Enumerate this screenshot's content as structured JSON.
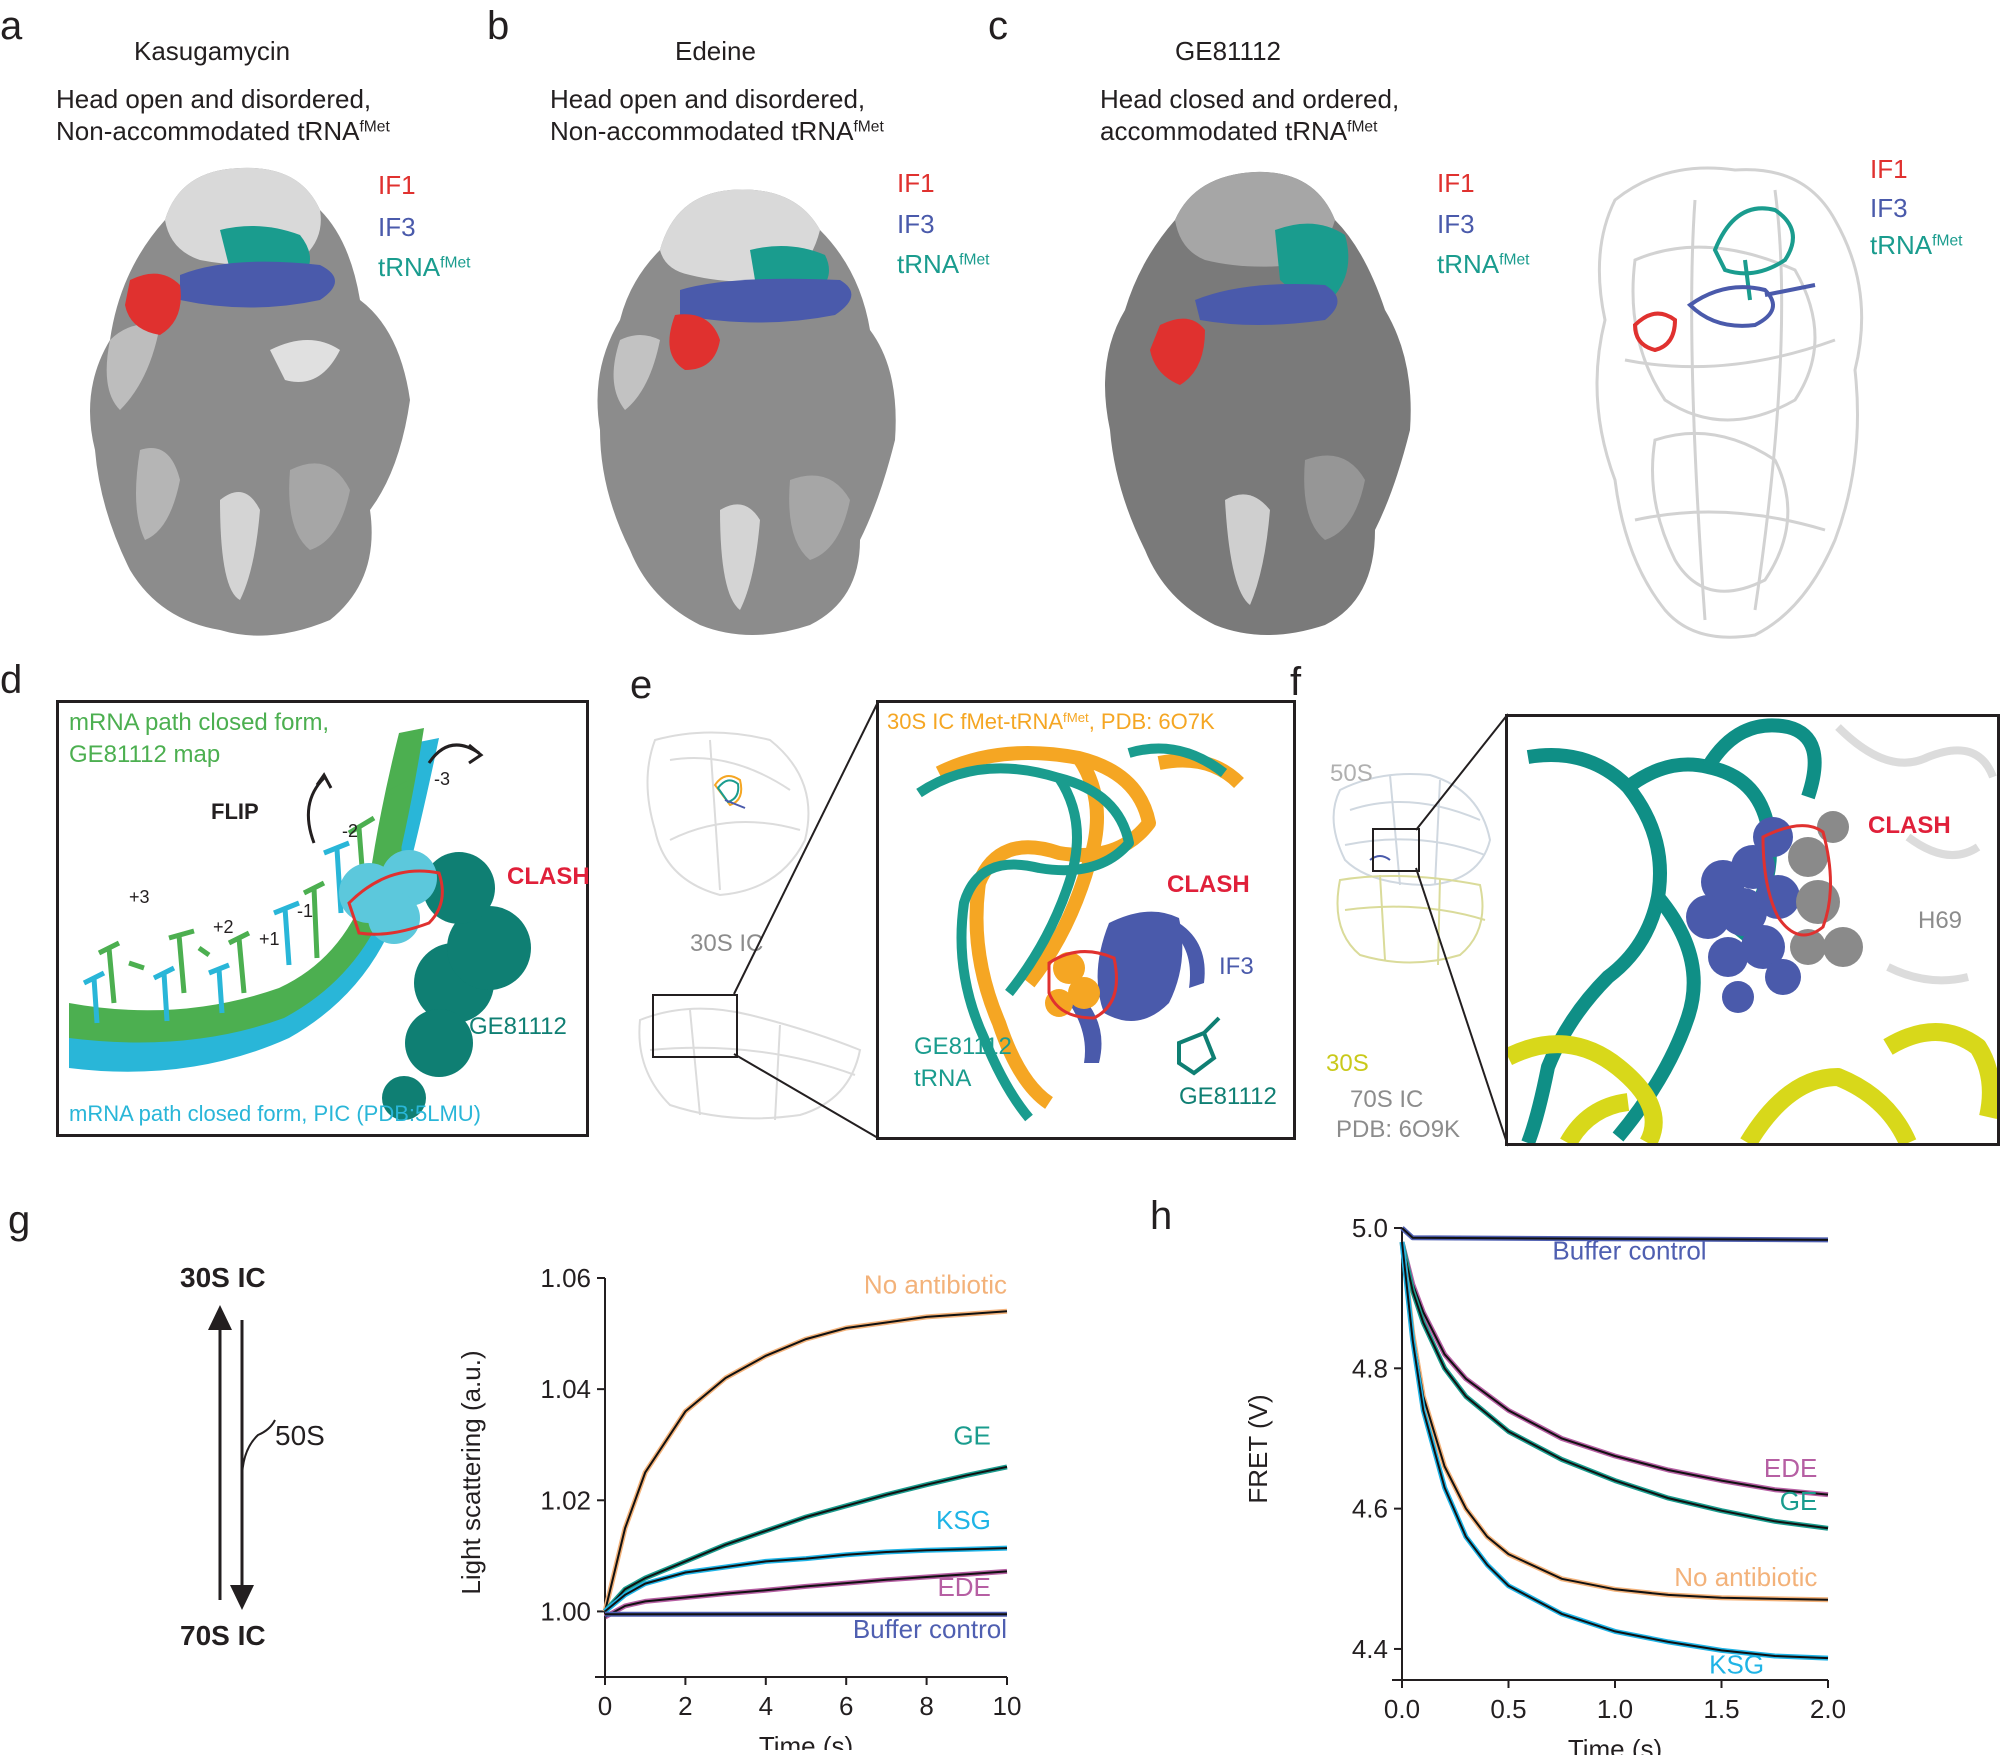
{
  "colors": {
    "if1": "#e0312f",
    "if3": "#4a5aab",
    "trna": "#1a9c8e",
    "ge_green": "#4caf50",
    "pic_cyan": "#29b6d8",
    "orange": "#f5a623",
    "clash": "#e0203a",
    "yellow": "#d8d81a",
    "ede": "#b65fa3",
    "ksg": "#1fb4e6",
    "buffer": "#4f5fb1",
    "noab": "#f3b27a"
  },
  "panel_a": {
    "letter": "a",
    "title": "Kasugamycin",
    "line1": "Head open and disordered,",
    "line2": "Non-accommodated tRNA",
    "sup": "fMet",
    "if1": "IF1",
    "if3": "IF3",
    "trna": "tRNA",
    "trna_sup": "fMet"
  },
  "panel_b": {
    "letter": "b",
    "title": "Edeine",
    "line1": "Head open and disordered,",
    "line2": "Non-accommodated tRNA",
    "sup": "fMet",
    "if1": "IF1",
    "if3": "IF3",
    "trna": "tRNA",
    "trna_sup": "fMet"
  },
  "panel_c": {
    "letter": "c",
    "title": "GE81112",
    "line1": "Head closed and ordered,",
    "line2": "accommodated tRNA",
    "sup": "fMet",
    "if1": "IF1",
    "if3": "IF3",
    "trna": "tRNA",
    "trna_sup": "fMet",
    "r_if1": "IF1",
    "r_if3": "IF3",
    "r_trna": "tRNA",
    "r_trna_sup": "fMet"
  },
  "panel_d": {
    "letter": "d",
    "green1": "mRNA path closed form,",
    "green2": "GE81112 map",
    "flip": "FLIP",
    "clash": "CLASH",
    "n_3": "-3",
    "n_2": "-2",
    "n_1": "-1",
    "p_1": "+1",
    "p_2": "+2",
    "p_3": "+3",
    "ge": "GE81112",
    "cyan": "mRNA path closed form, PIC (PDB:5LMU)"
  },
  "panel_e": {
    "letter": "e",
    "ic30": "30S IC",
    "header": "30S IC fMet-tRNA",
    "header_sup": "fMet",
    "header_tail": ", PDB: 6O7K",
    "clash": "CLASH",
    "if3": "IF3",
    "ge_trna1": "GE81112",
    "ge_trna2": "tRNA",
    "ge": "GE81112"
  },
  "panel_f": {
    "letter": "f",
    "s50": "50S",
    "s30": "30S",
    "ic70": "70S IC",
    "pdb": "PDB:  6O9K",
    "clash": "CLASH",
    "h69": "H69"
  },
  "panel_g": {
    "letter": "g",
    "top": "30S IC",
    "bottom": "70S IC",
    "s50": "50S",
    "chart_data": {
      "type": "line",
      "xlabel": "Time (s)",
      "ylabel": "Light scattering  (a.u.)",
      "xlim": [
        0,
        10
      ],
      "ylim": [
        0.99,
        1.06
      ],
      "xticks": [
        "0",
        "2",
        "4",
        "6",
        "8",
        "10"
      ],
      "yticks": [
        "1.00",
        "1.02",
        "1.04",
        "1.06"
      ],
      "series": [
        {
          "name": "No antibiotic",
          "color": "#f3b27a",
          "points": [
            [
              0,
              1.0
            ],
            [
              0.5,
              1.015
            ],
            [
              1,
              1.025
            ],
            [
              2,
              1.036
            ],
            [
              3,
              1.042
            ],
            [
              4,
              1.046
            ],
            [
              5,
              1.049
            ],
            [
              6,
              1.051
            ],
            [
              7,
              1.052
            ],
            [
              8,
              1.053
            ],
            [
              9,
              1.0535
            ],
            [
              10,
              1.054
            ]
          ]
        },
        {
          "name": "GE",
          "color": "#1a9c8e",
          "points": [
            [
              0,
              1.0
            ],
            [
              0.5,
              1.004
            ],
            [
              1,
              1.006
            ],
            [
              2,
              1.009
            ],
            [
              3,
              1.012
            ],
            [
              4,
              1.0145
            ],
            [
              5,
              1.017
            ],
            [
              6,
              1.019
            ],
            [
              7,
              1.021
            ],
            [
              8,
              1.0228
            ],
            [
              9,
              1.0245
            ],
            [
              10,
              1.026
            ]
          ]
        },
        {
          "name": "KSG",
          "color": "#1fb4e6",
          "points": [
            [
              0,
              1.0
            ],
            [
              0.5,
              1.003
            ],
            [
              1,
              1.005
            ],
            [
              2,
              1.007
            ],
            [
              3,
              1.008
            ],
            [
              4,
              1.009
            ],
            [
              5,
              1.0095
            ],
            [
              6,
              1.0102
            ],
            [
              7,
              1.0107
            ],
            [
              8,
              1.011
            ],
            [
              9,
              1.0112
            ],
            [
              10,
              1.0114
            ]
          ]
        },
        {
          "name": "EDE",
          "color": "#b65fa3",
          "points": [
            [
              0,
              0.999
            ],
            [
              0.5,
              1.001
            ],
            [
              1,
              1.0018
            ],
            [
              2,
              1.0025
            ],
            [
              3,
              1.0032
            ],
            [
              4,
              1.0038
            ],
            [
              5,
              1.0045
            ],
            [
              6,
              1.0051
            ],
            [
              7,
              1.0057
            ],
            [
              8,
              1.0062
            ],
            [
              9,
              1.0067
            ],
            [
              10,
              1.0072
            ]
          ]
        },
        {
          "name": "Buffer control",
          "color": "#4f5fb1",
          "points": [
            [
              0,
              0.9995
            ],
            [
              10,
              0.9995
            ]
          ]
        }
      ]
    }
  },
  "panel_h": {
    "letter": "h",
    "chart_data": {
      "type": "line",
      "xlabel": "Time (s)",
      "ylabel": "FRET (V)",
      "xlim": [
        0,
        2
      ],
      "ylim": [
        4.37,
        5.0
      ],
      "xticks": [
        "0.0",
        "0.5",
        "1.0",
        "1.5",
        "2.0"
      ],
      "yticks": [
        "4.4",
        "4.6",
        "4.8",
        "5.0"
      ],
      "series": [
        {
          "name": "Buffer control",
          "color": "#4f5fb1",
          "points": [
            [
              0,
              5.0
            ],
            [
              0.05,
              4.986
            ],
            [
              2,
              4.983
            ]
          ]
        },
        {
          "name": "EDE",
          "color": "#b65fa3",
          "points": [
            [
              0,
              4.98
            ],
            [
              0.05,
              4.92
            ],
            [
              0.1,
              4.88
            ],
            [
              0.2,
              4.82
            ],
            [
              0.3,
              4.785
            ],
            [
              0.5,
              4.74
            ],
            [
              0.75,
              4.7
            ],
            [
              1.0,
              4.675
            ],
            [
              1.25,
              4.655
            ],
            [
              1.5,
              4.64
            ],
            [
              1.75,
              4.627
            ],
            [
              2.0,
              4.62
            ]
          ]
        },
        {
          "name": "GE",
          "color": "#1a9c8e",
          "points": [
            [
              0,
              4.98
            ],
            [
              0.05,
              4.91
            ],
            [
              0.1,
              4.865
            ],
            [
              0.2,
              4.8
            ],
            [
              0.3,
              4.76
            ],
            [
              0.5,
              4.71
            ],
            [
              0.75,
              4.67
            ],
            [
              1.0,
              4.64
            ],
            [
              1.25,
              4.615
            ],
            [
              1.5,
              4.597
            ],
            [
              1.75,
              4.582
            ],
            [
              2.0,
              4.572
            ]
          ]
        },
        {
          "name": "No antibiotic",
          "color": "#f3b27a",
          "points": [
            [
              0,
              4.98
            ],
            [
              0.05,
              4.85
            ],
            [
              0.1,
              4.76
            ],
            [
              0.2,
              4.66
            ],
            [
              0.3,
              4.6
            ],
            [
              0.4,
              4.56
            ],
            [
              0.5,
              4.535
            ],
            [
              0.75,
              4.5
            ],
            [
              1.0,
              4.485
            ],
            [
              1.25,
              4.477
            ],
            [
              1.5,
              4.473
            ],
            [
              2.0,
              4.47
            ]
          ]
        },
        {
          "name": "KSG",
          "color": "#1fb4e6",
          "points": [
            [
              0,
              4.98
            ],
            [
              0.05,
              4.84
            ],
            [
              0.1,
              4.74
            ],
            [
              0.2,
              4.63
            ],
            [
              0.3,
              4.56
            ],
            [
              0.4,
              4.52
            ],
            [
              0.5,
              4.49
            ],
            [
              0.75,
              4.45
            ],
            [
              1.0,
              4.425
            ],
            [
              1.25,
              4.41
            ],
            [
              1.5,
              4.398
            ],
            [
              1.75,
              4.39
            ],
            [
              2.0,
              4.387
            ]
          ]
        }
      ]
    }
  }
}
